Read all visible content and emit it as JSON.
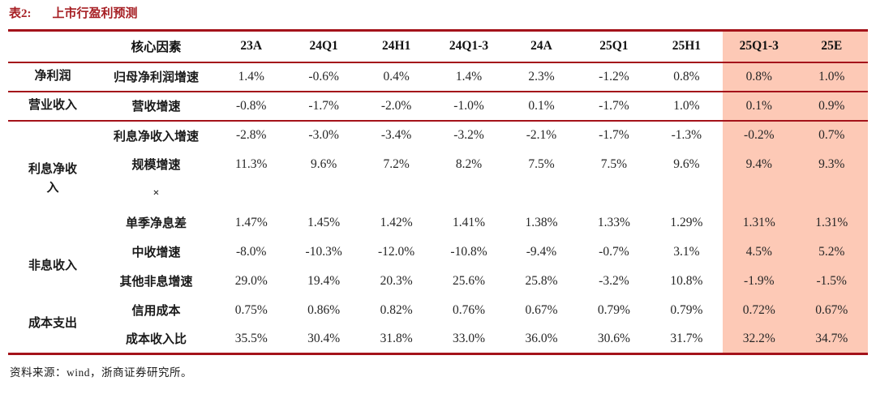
{
  "title": {
    "label": "表2:",
    "text": "上市行盈利预测"
  },
  "colors": {
    "title_red": "#A61E23",
    "line_red": "#A4121A",
    "highlight_pink": "#FDC9B6"
  },
  "table": {
    "factor_header": "核心因素",
    "columns": [
      "23A",
      "24Q1",
      "24H1",
      "24Q1-3",
      "24A",
      "25Q1",
      "25H1",
      "25Q1-3",
      "25E"
    ],
    "highlight_columns": [
      "25Q1-3",
      "25E"
    ],
    "rows": [
      {
        "category": "净利润",
        "factor": "归母净利润增速",
        "values": [
          "1.4%",
          "-0.6%",
          "0.4%",
          "1.4%",
          "2.3%",
          "-1.2%",
          "0.8%",
          "0.8%",
          "1.0%"
        ]
      },
      {
        "category": "营业收入",
        "factor": "营收增速",
        "values": [
          "-0.8%",
          "-1.7%",
          "-2.0%",
          "-1.0%",
          "0.1%",
          "-1.7%",
          "1.0%",
          "0.1%",
          "0.9%"
        ]
      },
      {
        "category": "利息净收\n入",
        "factor": "利息净收入增速",
        "values": [
          "-2.8%",
          "-3.0%",
          "-3.4%",
          "-3.2%",
          "-2.1%",
          "-1.7%",
          "-1.3%",
          "-0.2%",
          "0.7%"
        ]
      },
      {
        "factor": "规模增速",
        "values": [
          "11.3%",
          "9.6%",
          "7.2%",
          "8.2%",
          "7.5%",
          "7.5%",
          "9.6%",
          "9.4%",
          "9.3%"
        ]
      },
      {
        "factor": "×",
        "values": [
          "",
          "",
          "",
          "",
          "",
          "",
          "",
          "",
          ""
        ]
      },
      {
        "factor": "单季净息差",
        "values": [
          "1.47%",
          "1.45%",
          "1.42%",
          "1.41%",
          "1.38%",
          "1.33%",
          "1.29%",
          "1.31%",
          "1.31%"
        ]
      },
      {
        "category": "非息收入",
        "factor": "中收增速",
        "values": [
          "-8.0%",
          "-10.3%",
          "-12.0%",
          "-10.8%",
          "-9.4%",
          "-0.7%",
          "3.1%",
          "4.5%",
          "5.2%"
        ]
      },
      {
        "factor": "其他非息增速",
        "values": [
          "29.0%",
          "19.4%",
          "20.3%",
          "25.6%",
          "25.8%",
          "-3.2%",
          "10.8%",
          "-1.9%",
          "-1.5%"
        ]
      },
      {
        "category": "成本支出",
        "factor": "信用成本",
        "values": [
          "0.75%",
          "0.86%",
          "0.82%",
          "0.76%",
          "0.67%",
          "0.79%",
          "0.79%",
          "0.72%",
          "0.67%"
        ]
      },
      {
        "factor": "成本收入比",
        "values": [
          "35.5%",
          "30.4%",
          "31.8%",
          "33.0%",
          "36.0%",
          "30.6%",
          "31.7%",
          "32.2%",
          "34.7%"
        ]
      }
    ]
  },
  "footer": {
    "source": "资料来源：wind，浙商证券研究所。"
  }
}
